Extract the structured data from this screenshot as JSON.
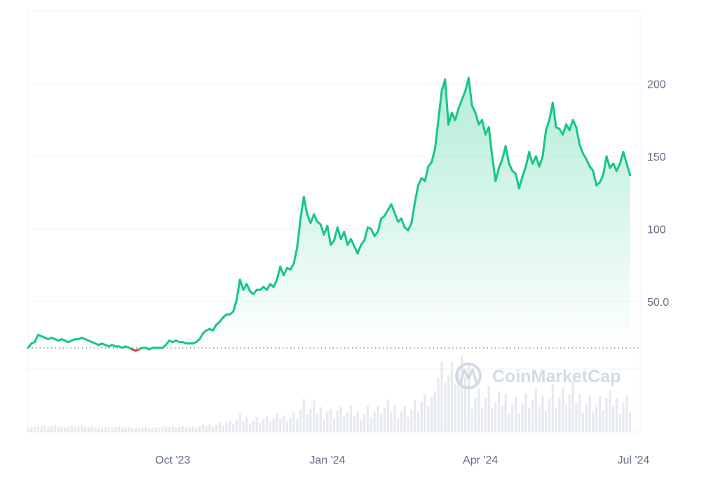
{
  "colors": {
    "up_line": "#16c784",
    "down_line": "#ea3943",
    "area_top": "#16c784",
    "grid": "#eff2f5",
    "volume": "#e6e9ef",
    "baseline": "#808a9d",
    "tick_text": "#616e85",
    "watermark": "#cfd6e4"
  },
  "watermark": {
    "text": "CoinMarketCap",
    "icon": "coinmarketcap-logo-icon"
  },
  "chart_data": {
    "type": "area",
    "baseline_value": 18,
    "y_ticks": [
      {
        "value": 50,
        "label": "50.0"
      },
      {
        "value": 100,
        "label": "100"
      },
      {
        "value": 150,
        "label": "150"
      },
      {
        "value": 200,
        "label": "200"
      }
    ],
    "x_ticks": [
      {
        "date": "2023-10-01",
        "label": "Oct '23"
      },
      {
        "date": "2024-01-01",
        "label": "Jan '24"
      },
      {
        "date": "2024-04-01",
        "label": "Apr '24"
      },
      {
        "date": "2024-07-01",
        "label": "Jul '24"
      }
    ],
    "x_range": [
      "2023-07-07",
      "2024-07-05"
    ],
    "ylim": [
      -40,
      250
    ],
    "grid": true,
    "series": [
      {
        "values": [
          [
            "2023-07-07",
            18
          ],
          [
            "2023-07-09",
            21
          ],
          [
            "2023-07-11",
            22
          ],
          [
            "2023-07-13",
            27
          ],
          [
            "2023-07-15",
            26
          ],
          [
            "2023-07-17",
            25
          ],
          [
            "2023-07-19",
            24
          ],
          [
            "2023-07-21",
            25
          ],
          [
            "2023-07-23",
            24
          ],
          [
            "2023-07-25",
            23
          ],
          [
            "2023-07-27",
            24
          ],
          [
            "2023-07-29",
            23
          ],
          [
            "2023-07-31",
            22
          ],
          [
            "2023-08-02",
            23
          ],
          [
            "2023-08-04",
            24
          ],
          [
            "2023-08-06",
            24
          ],
          [
            "2023-08-08",
            25
          ],
          [
            "2023-08-10",
            24
          ],
          [
            "2023-08-12",
            23
          ],
          [
            "2023-08-14",
            22
          ],
          [
            "2023-08-16",
            21
          ],
          [
            "2023-08-18",
            20
          ],
          [
            "2023-08-20",
            21
          ],
          [
            "2023-08-22",
            20
          ],
          [
            "2023-08-24",
            19
          ],
          [
            "2023-08-26",
            20
          ],
          [
            "2023-08-28",
            19
          ],
          [
            "2023-08-30",
            19
          ],
          [
            "2023-09-01",
            18
          ],
          [
            "2023-09-03",
            19
          ],
          [
            "2023-09-05",
            18
          ],
          [
            "2023-09-07",
            17
          ],
          [
            "2023-09-09",
            16
          ],
          [
            "2023-09-11",
            17
          ],
          [
            "2023-09-13",
            18
          ],
          [
            "2023-09-15",
            18
          ],
          [
            "2023-09-17",
            17
          ],
          [
            "2023-09-19",
            18
          ],
          [
            "2023-09-21",
            18
          ],
          [
            "2023-09-23",
            18
          ],
          [
            "2023-09-25",
            18
          ],
          [
            "2023-09-27",
            20
          ],
          [
            "2023-09-29",
            23
          ],
          [
            "2023-10-01",
            22
          ],
          [
            "2023-10-03",
            23
          ],
          [
            "2023-10-05",
            22
          ],
          [
            "2023-10-07",
            22
          ],
          [
            "2023-10-09",
            21
          ],
          [
            "2023-10-11",
            21
          ],
          [
            "2023-10-13",
            21
          ],
          [
            "2023-10-15",
            22
          ],
          [
            "2023-10-17",
            24
          ],
          [
            "2023-10-19",
            28
          ],
          [
            "2023-10-21",
            30
          ],
          [
            "2023-10-23",
            31
          ],
          [
            "2023-10-25",
            30
          ],
          [
            "2023-10-27",
            34
          ],
          [
            "2023-10-29",
            36
          ],
          [
            "2023-10-31",
            39
          ],
          [
            "2023-11-02",
            41
          ],
          [
            "2023-11-04",
            41
          ],
          [
            "2023-11-06",
            43
          ],
          [
            "2023-11-08",
            51
          ],
          [
            "2023-11-10",
            65
          ],
          [
            "2023-11-12",
            58
          ],
          [
            "2023-11-14",
            62
          ],
          [
            "2023-11-16",
            57
          ],
          [
            "2023-11-18",
            55
          ],
          [
            "2023-11-20",
            58
          ],
          [
            "2023-11-22",
            58
          ],
          [
            "2023-11-24",
            60
          ],
          [
            "2023-11-26",
            58
          ],
          [
            "2023-11-28",
            62
          ],
          [
            "2023-11-30",
            60
          ],
          [
            "2023-12-02",
            65
          ],
          [
            "2023-12-04",
            74
          ],
          [
            "2023-12-06",
            68
          ],
          [
            "2023-12-08",
            73
          ],
          [
            "2023-12-10",
            72
          ],
          [
            "2023-12-12",
            76
          ],
          [
            "2023-12-14",
            87
          ],
          [
            "2023-12-16",
            107
          ],
          [
            "2023-12-18",
            122
          ],
          [
            "2023-12-20",
            110
          ],
          [
            "2023-12-22",
            104
          ],
          [
            "2023-12-24",
            110
          ],
          [
            "2023-12-26",
            105
          ],
          [
            "2023-12-28",
            103
          ],
          [
            "2023-12-30",
            96
          ],
          [
            "2024-01-01",
            102
          ],
          [
            "2024-01-03",
            89
          ],
          [
            "2024-01-05",
            92
          ],
          [
            "2024-01-07",
            101
          ],
          [
            "2024-01-09",
            93
          ],
          [
            "2024-01-11",
            98
          ],
          [
            "2024-01-13",
            89
          ],
          [
            "2024-01-15",
            93
          ],
          [
            "2024-01-17",
            88
          ],
          [
            "2024-01-19",
            83
          ],
          [
            "2024-01-21",
            89
          ],
          [
            "2024-01-23",
            92
          ],
          [
            "2024-01-25",
            101
          ],
          [
            "2024-01-27",
            100
          ],
          [
            "2024-01-29",
            95
          ],
          [
            "2024-01-31",
            98
          ],
          [
            "2024-02-02",
            107
          ],
          [
            "2024-02-04",
            109
          ],
          [
            "2024-02-06",
            113
          ],
          [
            "2024-02-08",
            117
          ],
          [
            "2024-02-10",
            111
          ],
          [
            "2024-02-12",
            105
          ],
          [
            "2024-02-14",
            107
          ],
          [
            "2024-02-16",
            101
          ],
          [
            "2024-02-18",
            99
          ],
          [
            "2024-02-20",
            104
          ],
          [
            "2024-02-22",
            118
          ],
          [
            "2024-02-24",
            130
          ],
          [
            "2024-02-26",
            135
          ],
          [
            "2024-02-28",
            133
          ],
          [
            "2024-03-01",
            143
          ],
          [
            "2024-03-03",
            146
          ],
          [
            "2024-03-05",
            155
          ],
          [
            "2024-03-07",
            175
          ],
          [
            "2024-03-09",
            195
          ],
          [
            "2024-03-11",
            203
          ],
          [
            "2024-03-13",
            172
          ],
          [
            "2024-03-15",
            180
          ],
          [
            "2024-03-17",
            175
          ],
          [
            "2024-03-19",
            183
          ],
          [
            "2024-03-21",
            189
          ],
          [
            "2024-03-23",
            195
          ],
          [
            "2024-03-25",
            204
          ],
          [
            "2024-03-27",
            185
          ],
          [
            "2024-03-29",
            180
          ],
          [
            "2024-03-31",
            172
          ],
          [
            "2024-04-02",
            175
          ],
          [
            "2024-04-04",
            165
          ],
          [
            "2024-04-06",
            170
          ],
          [
            "2024-04-08",
            150
          ],
          [
            "2024-04-10",
            133
          ],
          [
            "2024-04-12",
            142
          ],
          [
            "2024-04-14",
            148
          ],
          [
            "2024-04-16",
            157
          ],
          [
            "2024-04-18",
            145
          ],
          [
            "2024-04-20",
            140
          ],
          [
            "2024-04-22",
            138
          ],
          [
            "2024-04-24",
            128
          ],
          [
            "2024-04-26",
            136
          ],
          [
            "2024-04-28",
            143
          ],
          [
            "2024-04-30",
            153
          ],
          [
            "2024-05-02",
            145
          ],
          [
            "2024-05-04",
            150
          ],
          [
            "2024-05-06",
            143
          ],
          [
            "2024-05-08",
            150
          ],
          [
            "2024-05-10",
            168
          ],
          [
            "2024-05-12",
            175
          ],
          [
            "2024-05-14",
            187
          ],
          [
            "2024-05-16",
            170
          ],
          [
            "2024-05-18",
            169
          ],
          [
            "2024-05-20",
            165
          ],
          [
            "2024-05-22",
            172
          ],
          [
            "2024-05-24",
            168
          ],
          [
            "2024-05-26",
            175
          ],
          [
            "2024-05-28",
            170
          ],
          [
            "2024-05-30",
            158
          ],
          [
            "2024-06-01",
            152
          ],
          [
            "2024-06-03",
            148
          ],
          [
            "2024-06-05",
            143
          ],
          [
            "2024-06-07",
            140
          ],
          [
            "2024-06-09",
            130
          ],
          [
            "2024-06-11",
            132
          ],
          [
            "2024-06-13",
            137
          ],
          [
            "2024-06-15",
            150
          ],
          [
            "2024-06-17",
            142
          ],
          [
            "2024-06-19",
            145
          ],
          [
            "2024-06-21",
            140
          ],
          [
            "2024-06-23",
            145
          ],
          [
            "2024-06-25",
            153
          ],
          [
            "2024-06-27",
            145
          ],
          [
            "2024-06-29",
            137
          ]
        ]
      }
    ]
  }
}
